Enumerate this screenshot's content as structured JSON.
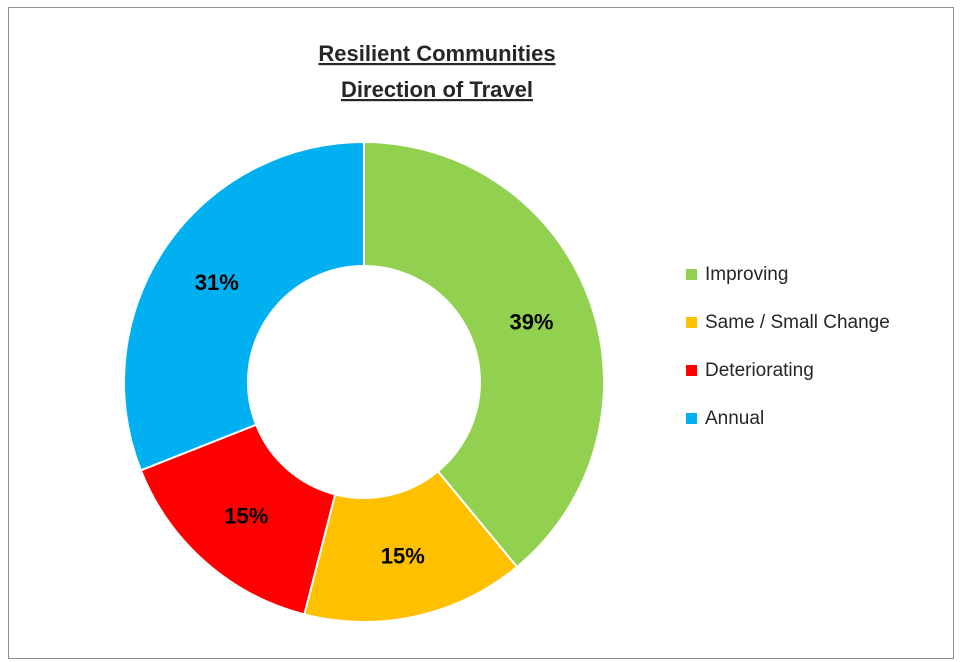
{
  "chart_data": {
    "type": "pie",
    "title": [
      "Resilient Communities",
      "Direction of Travel"
    ],
    "categories": [
      "Improving",
      "Same / Small Change",
      "Deteriorating",
      "Annual"
    ],
    "values": [
      39,
      15,
      15,
      31
    ],
    "labels": [
      "39%",
      "15%",
      "15%",
      "31%"
    ],
    "colors": [
      "#92d050",
      "#ffc000",
      "#ff0000",
      "#00b0f0"
    ],
    "donut": true,
    "legend_position": "right"
  }
}
